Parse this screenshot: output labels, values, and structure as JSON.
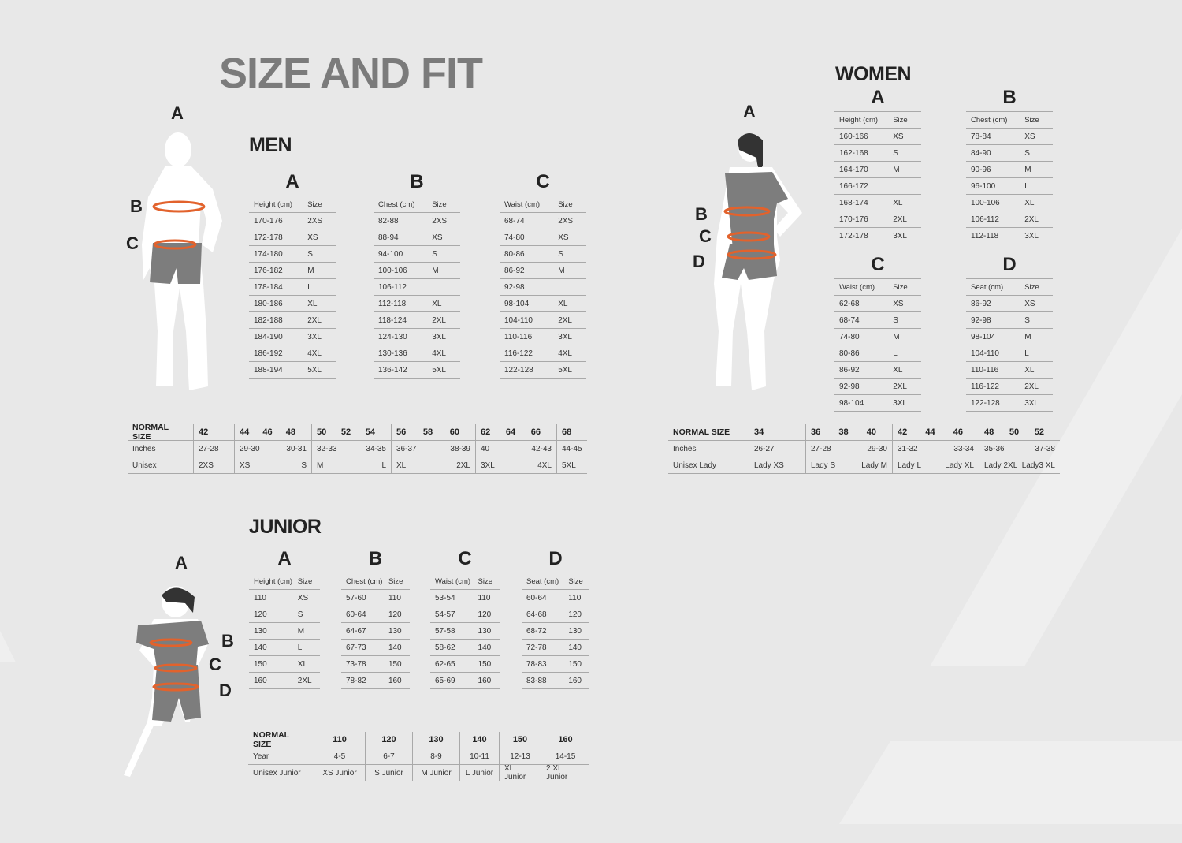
{
  "title": "SIZE AND FIT",
  "colors": {
    "background": "#e8e8e8",
    "title": "#7b7b7b",
    "measure_band": "#e2622c",
    "shorts": "#7d7d7d",
    "body": "#ffffff"
  },
  "men": {
    "heading": "MEN",
    "figure_labels": [
      "A",
      "B",
      "C"
    ],
    "tables": [
      {
        "letter": "A",
        "headers": [
          "Height (cm)",
          "Size"
        ],
        "rows": [
          [
            "170-176",
            "2XS"
          ],
          [
            "172-178",
            "XS"
          ],
          [
            "174-180",
            "S"
          ],
          [
            "176-182",
            "M"
          ],
          [
            "178-184",
            "L"
          ],
          [
            "180-186",
            "XL"
          ],
          [
            "182-188",
            "2XL"
          ],
          [
            "184-190",
            "3XL"
          ],
          [
            "186-192",
            "4XL"
          ],
          [
            "188-194",
            "5XL"
          ]
        ]
      },
      {
        "letter": "B",
        "headers": [
          "Chest (cm)",
          "Size"
        ],
        "rows": [
          [
            "82-88",
            "2XS"
          ],
          [
            "88-94",
            "XS"
          ],
          [
            "94-100",
            "S"
          ],
          [
            "100-106",
            "M"
          ],
          [
            "106-112",
            "L"
          ],
          [
            "112-118",
            "XL"
          ],
          [
            "118-124",
            "2XL"
          ],
          [
            "124-130",
            "3XL"
          ],
          [
            "130-136",
            "4XL"
          ],
          [
            "136-142",
            "5XL"
          ]
        ]
      },
      {
        "letter": "C",
        "headers": [
          "Waist (cm)",
          "Size"
        ],
        "rows": [
          [
            "68-74",
            "2XS"
          ],
          [
            "74-80",
            "XS"
          ],
          [
            "80-86",
            "S"
          ],
          [
            "86-92",
            "M"
          ],
          [
            "92-98",
            "L"
          ],
          [
            "98-104",
            "XL"
          ],
          [
            "104-110",
            "2XL"
          ],
          [
            "110-116",
            "3XL"
          ],
          [
            "116-122",
            "4XL"
          ],
          [
            "122-128",
            "5XL"
          ]
        ]
      }
    ],
    "normal": {
      "labels": [
        "NORMAL SIZE",
        "Inches",
        "Unisex"
      ],
      "groups": [
        {
          "sizes": [
            "42"
          ],
          "inches": [
            "27-28"
          ],
          "unisex": [
            "2XS"
          ]
        },
        {
          "sizes": [
            "44",
            "46",
            "48"
          ],
          "inches": [
            "29-30",
            "30-31"
          ],
          "unisex": [
            "XS",
            "S"
          ]
        },
        {
          "sizes": [
            "50",
            "52",
            "54"
          ],
          "inches": [
            "32-33",
            "34-35"
          ],
          "unisex": [
            "M",
            "L"
          ]
        },
        {
          "sizes": [
            "56",
            "58",
            "60"
          ],
          "inches": [
            "36-37",
            "38-39"
          ],
          "unisex": [
            "XL",
            "2XL"
          ]
        },
        {
          "sizes": [
            "62",
            "64",
            "66"
          ],
          "inches": [
            "40",
            "42-43"
          ],
          "unisex": [
            "3XL",
            "4XL"
          ]
        },
        {
          "sizes": [
            "68"
          ],
          "inches": [
            "44-45"
          ],
          "unisex": [
            "5XL"
          ]
        }
      ]
    }
  },
  "women": {
    "heading": "WOMEN",
    "figure_labels": [
      "A",
      "B",
      "C",
      "D"
    ],
    "tables": [
      {
        "letter": "A",
        "headers": [
          "Height (cm)",
          "Size"
        ],
        "rows": [
          [
            "160-166",
            "XS"
          ],
          [
            "162-168",
            "S"
          ],
          [
            "164-170",
            "M"
          ],
          [
            "166-172",
            "L"
          ],
          [
            "168-174",
            "XL"
          ],
          [
            "170-176",
            "2XL"
          ],
          [
            "172-178",
            "3XL"
          ]
        ]
      },
      {
        "letter": "B",
        "headers": [
          "Chest (cm)",
          "Size"
        ],
        "rows": [
          [
            "78-84",
            "XS"
          ],
          [
            "84-90",
            "S"
          ],
          [
            "90-96",
            "M"
          ],
          [
            "96-100",
            "L"
          ],
          [
            "100-106",
            "XL"
          ],
          [
            "106-112",
            "2XL"
          ],
          [
            "112-118",
            "3XL"
          ]
        ]
      },
      {
        "letter": "C",
        "headers": [
          "Waist (cm)",
          "Size"
        ],
        "rows": [
          [
            "62-68",
            "XS"
          ],
          [
            "68-74",
            "S"
          ],
          [
            "74-80",
            "M"
          ],
          [
            "80-86",
            "L"
          ],
          [
            "86-92",
            "XL"
          ],
          [
            "92-98",
            "2XL"
          ],
          [
            "98-104",
            "3XL"
          ]
        ]
      },
      {
        "letter": "D",
        "headers": [
          "Seat (cm)",
          "Size"
        ],
        "rows": [
          [
            "86-92",
            "XS"
          ],
          [
            "92-98",
            "S"
          ],
          [
            "98-104",
            "M"
          ],
          [
            "104-110",
            "L"
          ],
          [
            "110-116",
            "XL"
          ],
          [
            "116-122",
            "2XL"
          ],
          [
            "122-128",
            "3XL"
          ]
        ]
      }
    ],
    "normal": {
      "labels": [
        "NORMAL SIZE",
        "Inches",
        "Unisex Lady"
      ],
      "groups": [
        {
          "sizes": [
            "34"
          ],
          "inches": [
            "26-27"
          ],
          "unisex": [
            "Lady XS"
          ]
        },
        {
          "sizes": [
            "36",
            "38",
            "40"
          ],
          "inches": [
            "27-28",
            "29-30"
          ],
          "unisex": [
            "Lady S",
            "Lady M"
          ]
        },
        {
          "sizes": [
            "42",
            "44",
            "46"
          ],
          "inches": [
            "31-32",
            "33-34"
          ],
          "unisex": [
            "Lady L",
            "Lady XL"
          ]
        },
        {
          "sizes": [
            "48",
            "50",
            "52"
          ],
          "inches": [
            "35-36",
            "37-38"
          ],
          "unisex": [
            "Lady 2XL",
            "Lady3 XL"
          ]
        }
      ]
    }
  },
  "junior": {
    "heading": "JUNIOR",
    "figure_labels": [
      "A",
      "B",
      "C",
      "D"
    ],
    "tables": [
      {
        "letter": "A",
        "headers": [
          "Height (cm)",
          "Size"
        ],
        "rows": [
          [
            "110",
            "XS"
          ],
          [
            "120",
            "S"
          ],
          [
            "130",
            "M"
          ],
          [
            "140",
            "L"
          ],
          [
            "150",
            "XL"
          ],
          [
            "160",
            "2XL"
          ]
        ]
      },
      {
        "letter": "B",
        "headers": [
          "Chest (cm)",
          "Size"
        ],
        "rows": [
          [
            "57-60",
            "110"
          ],
          [
            "60-64",
            "120"
          ],
          [
            "64-67",
            "130"
          ],
          [
            "67-73",
            "140"
          ],
          [
            "73-78",
            "150"
          ],
          [
            "78-82",
            "160"
          ]
        ]
      },
      {
        "letter": "C",
        "headers": [
          "Waist (cm)",
          "Size"
        ],
        "rows": [
          [
            "53-54",
            "110"
          ],
          [
            "54-57",
            "120"
          ],
          [
            "57-58",
            "130"
          ],
          [
            "58-62",
            "140"
          ],
          [
            "62-65",
            "150"
          ],
          [
            "65-69",
            "160"
          ]
        ]
      },
      {
        "letter": "D",
        "headers": [
          "Seat (cm)",
          "Size"
        ],
        "rows": [
          [
            "60-64",
            "110"
          ],
          [
            "64-68",
            "120"
          ],
          [
            "68-72",
            "130"
          ],
          [
            "72-78",
            "140"
          ],
          [
            "78-83",
            "150"
          ],
          [
            "83-88",
            "160"
          ]
        ]
      }
    ],
    "normal": {
      "labels": [
        "NORMAL SIZE",
        "Year",
        "Unisex Junior"
      ],
      "groups": [
        {
          "sizes": [
            "110"
          ],
          "inches": [
            "4-5"
          ],
          "unisex": [
            "XS Junior"
          ]
        },
        {
          "sizes": [
            "120"
          ],
          "inches": [
            "6-7"
          ],
          "unisex": [
            "S Junior"
          ]
        },
        {
          "sizes": [
            "130"
          ],
          "inches": [
            "8-9"
          ],
          "unisex": [
            "M Junior"
          ]
        },
        {
          "sizes": [
            "140"
          ],
          "inches": [
            "10-11"
          ],
          "unisex": [
            "L Junior"
          ]
        },
        {
          "sizes": [
            "150"
          ],
          "inches": [
            "12-13"
          ],
          "unisex": [
            "XL Junior"
          ]
        },
        {
          "sizes": [
            "160"
          ],
          "inches": [
            "14-15"
          ],
          "unisex": [
            "2 XL Junior"
          ]
        }
      ]
    }
  }
}
